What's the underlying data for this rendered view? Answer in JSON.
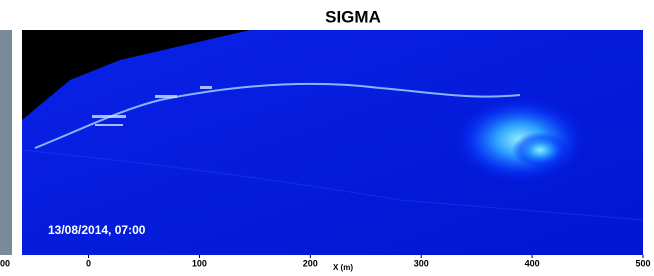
{
  "chart_data": {
    "type": "image",
    "title": "SIGMA",
    "xlabel": "X (m)",
    "annotation": "13/08/2014, 07:00",
    "edge_label": "00",
    "xlim": [
      -60,
      500
    ],
    "xticks": [
      0,
      100,
      200,
      300,
      400,
      500
    ]
  }
}
